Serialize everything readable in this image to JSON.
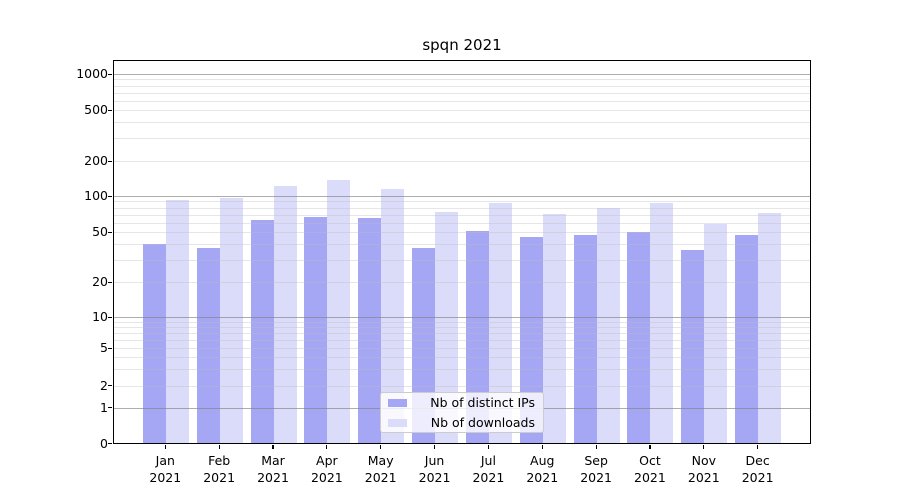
{
  "title": "spqn 2021",
  "chart_data": {
    "type": "bar",
    "title": "spqn 2021",
    "categories": [
      "Jan 2021",
      "Feb 2021",
      "Mar 2021",
      "Apr 2021",
      "May 2021",
      "Jun 2021",
      "Jul 2021",
      "Aug 2021",
      "Sep 2021",
      "Oct 2021",
      "Nov 2021",
      "Dec 2021"
    ],
    "months": [
      "Jan",
      "Feb",
      "Mar",
      "Apr",
      "May",
      "Jun",
      "Jul",
      "Aug",
      "Sep",
      "Oct",
      "Nov",
      "Dec"
    ],
    "year_label": "2021",
    "series": [
      {
        "name": "Nb of distinct IPs",
        "color": "#a6a7f4",
        "values": [
          40,
          37,
          63,
          67,
          65,
          37,
          51,
          46,
          47,
          50,
          36,
          47
        ]
      },
      {
        "name": "Nb of downloads",
        "color": "#dbdcf9",
        "values": [
          92,
          96,
          123,
          136,
          115,
          73,
          87,
          71,
          79,
          87,
          58,
          72
        ]
      }
    ],
    "xlabel": "",
    "ylabel": "",
    "yscale": "symlog",
    "y_tick_labels": [
      "0",
      "1",
      "2",
      "5",
      "10",
      "20",
      "50",
      "100",
      "200",
      "500",
      "1000"
    ],
    "ylim": [
      0,
      1400
    ],
    "grid": true,
    "legend_position": "lower-center",
    "major_grid_values": [
      1,
      10,
      100,
      1000
    ],
    "colors": {
      "distinct_ips": "#a6a7f4",
      "downloads": "#dbdcf9",
      "major_gridline": "#b0b0b0",
      "minor_gridline": "#e9e9e9",
      "axis": "#000000",
      "background": "#ffffff"
    }
  },
  "legend": {
    "items": [
      {
        "label": "Nb of distinct IPs",
        "color": "#a6a7f4"
      },
      {
        "label": "Nb of downloads",
        "color": "#dbdcf9"
      }
    ]
  }
}
